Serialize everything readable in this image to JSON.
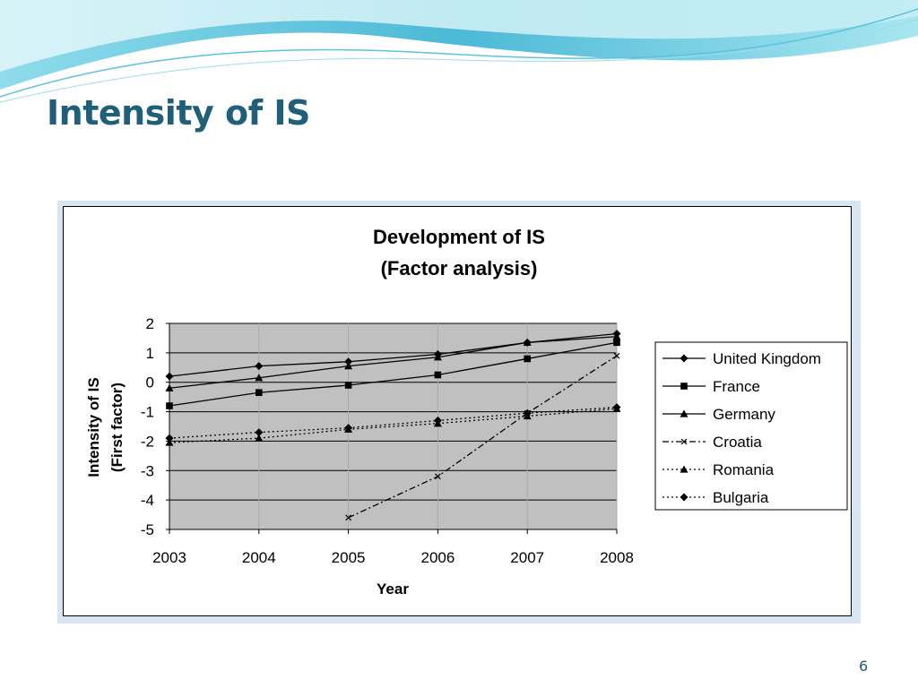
{
  "slide": {
    "title": "Intensity of IS",
    "page_number": "6"
  },
  "colors": {
    "title": "#1f5f7a",
    "banner_light": "#c6eef5",
    "banner_dark": "#5cc3dc",
    "chart_frame": "#d8e6f3",
    "plot_area": "#c0c0c0"
  },
  "chart_data": {
    "type": "line",
    "title": "Development of IS",
    "subtitle": "(Factor analysis)",
    "xlabel": "Year",
    "ylabel": "Intensity of IS",
    "ylabel2": "(First factor)",
    "x": [
      2003,
      2004,
      2005,
      2006,
      2007,
      2008
    ],
    "x_ticks": [
      "2003",
      "2004",
      "2005",
      "2006",
      "2007",
      "2008"
    ],
    "y_ticks": [
      "2",
      "1",
      "0",
      "-1",
      "-2",
      "-3",
      "-4",
      "-5"
    ],
    "ylim": [
      -5,
      2
    ],
    "grid": "horizontal",
    "legend_position": "right",
    "series": [
      {
        "name": "United Kingdom",
        "values": [
          0.2,
          0.55,
          0.7,
          0.95,
          1.35,
          1.65
        ],
        "marker": "diamond",
        "line": "solid"
      },
      {
        "name": "France",
        "values": [
          -0.8,
          -0.35,
          -0.1,
          0.25,
          0.8,
          1.35
        ],
        "marker": "square",
        "line": "solid"
      },
      {
        "name": "Germany",
        "values": [
          -0.2,
          0.15,
          0.55,
          0.85,
          1.35,
          1.55
        ],
        "marker": "triangle",
        "line": "solid"
      },
      {
        "name": "Croatia",
        "values": [
          null,
          null,
          -4.6,
          -3.2,
          -1.05,
          0.9
        ],
        "marker": "x",
        "line": "dashdot"
      },
      {
        "name": "Romania",
        "values": [
          -2.05,
          -1.9,
          -1.6,
          -1.4,
          -1.15,
          -0.9
        ],
        "marker": "triangle",
        "line": "dotted"
      },
      {
        "name": "Bulgaria",
        "values": [
          -1.9,
          -1.7,
          -1.55,
          -1.3,
          -1.05,
          -0.85
        ],
        "marker": "diamond",
        "line": "dotted"
      }
    ]
  }
}
